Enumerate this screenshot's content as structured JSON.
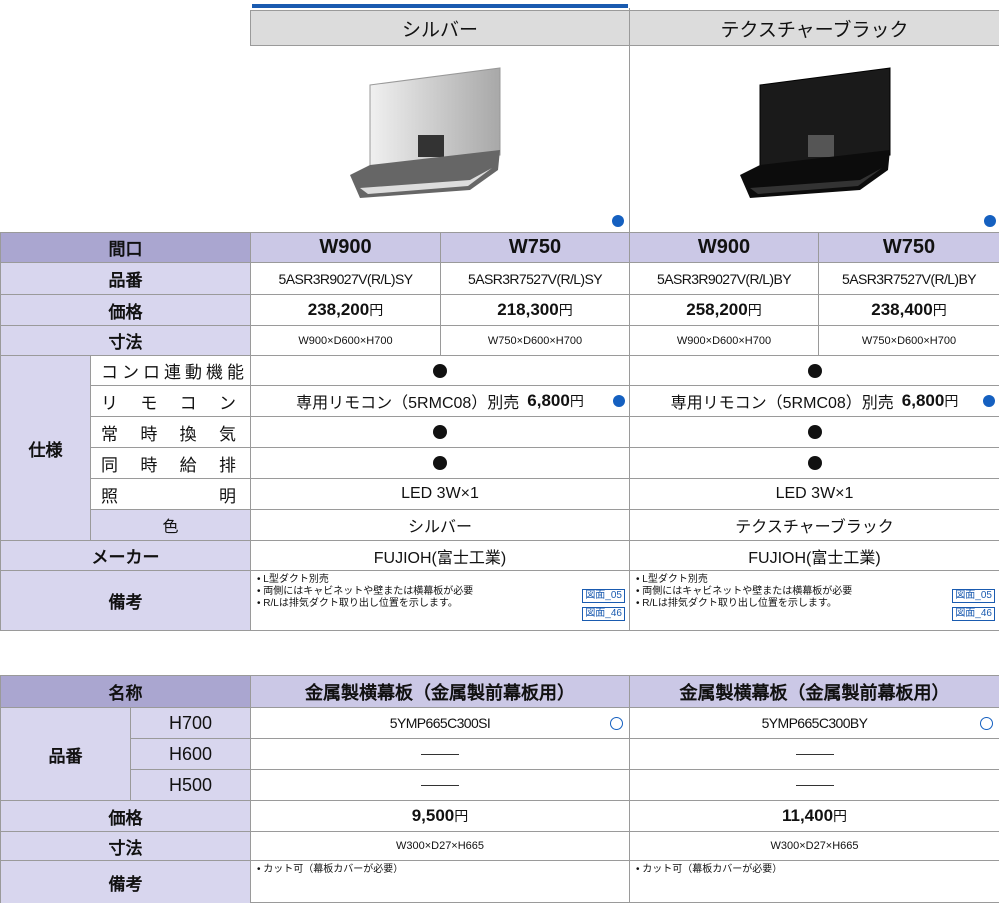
{
  "columns": [
    "シルバー",
    "テクスチャーブラック"
  ],
  "spec": {
    "labels": {
      "width": "間口",
      "model": "品番",
      "price": "価格",
      "size": "寸法",
      "spec": "仕様",
      "maker": "メーカー",
      "notes": "備考"
    },
    "spec_items": [
      "コンロ連動機能",
      "リモコン",
      "常時換気",
      "同時給排",
      "照明",
      "色"
    ],
    "yen": "円",
    "products": [
      {
        "width": "W900",
        "model": "5ASR3R9027V(R/L)SY",
        "price": "238,200",
        "size": "W900×D600×H700"
      },
      {
        "width": "W750",
        "model": "5ASR3R7527V(R/L)SY",
        "price": "218,300",
        "size": "W750×D600×H700"
      },
      {
        "width": "W900",
        "model": "5ASR3R9027V(R/L)BY",
        "price": "258,200",
        "size": "W900×D600×H700"
      },
      {
        "width": "W750",
        "model": "5ASR3R7527V(R/L)BY",
        "price": "238,400",
        "size": "W750×D600×H700"
      }
    ],
    "variants": [
      {
        "remote": "専用リモコン（5RMC08）別売",
        "remote_price": "6,800",
        "light": "LED 3W×1",
        "color": "シルバー",
        "maker": "FUJIOH(富士工業)",
        "notes": [
          "• L型ダクト別売",
          "• 両側にはキャビネットや壁または横幕板が必要",
          "• R/Lは排気ダクト取り出し位置を示します。"
        ],
        "links": [
          "図面_05",
          "図面_46"
        ]
      },
      {
        "remote": "専用リモコン（5RMC08）別売",
        "remote_price": "6,800",
        "light": "LED 3W×1",
        "color": "テクスチャーブラック",
        "maker": "FUJIOH(富士工業)",
        "notes": [
          "• L型ダクト別売",
          "• 両側にはキャビネットや壁または横幕板が必要",
          "• R/Lは排気ダクト取り出し位置を示します。"
        ],
        "links": [
          "図面_05",
          "図面_46"
        ]
      }
    ]
  },
  "panel": {
    "labels": {
      "name": "名称",
      "model": "品番",
      "price": "価格",
      "size": "寸法",
      "notes": "備考"
    },
    "heights": [
      "H700",
      "H600",
      "H500"
    ],
    "products": [
      {
        "name": "金属製横幕板（金属製前幕板用）",
        "model": "5YMP665C300SI",
        "price": "9,500",
        "size": "W300×D27×H665",
        "note": "• カット可（幕板カバーが必要）"
      },
      {
        "name": "金属製横幕板（金属製前幕板用）",
        "model": "5YMP665C300BY",
        "price": "11,400",
        "size": "W300×D27×H665",
        "note": "• カット可（幕板カバーが必要）"
      }
    ]
  }
}
